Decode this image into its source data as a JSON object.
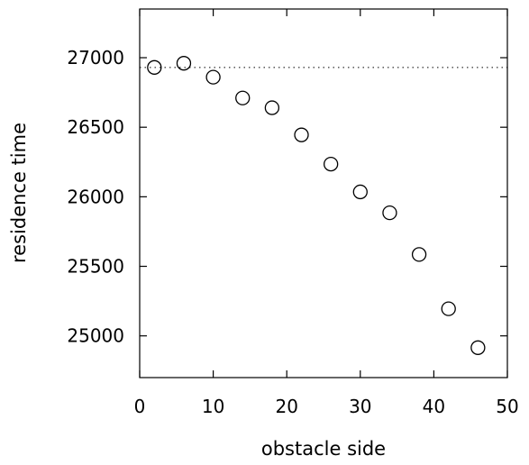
{
  "chart_data": {
    "type": "scatter",
    "title": "",
    "xlabel": "obstacle side",
    "ylabel": "residence time",
    "xlim": [
      0,
      50
    ],
    "ylim": [
      24700,
      27350
    ],
    "x_ticks": [
      0,
      10,
      20,
      30,
      40,
      50
    ],
    "y_ticks": [
      25000,
      25500,
      26000,
      26500,
      27000
    ],
    "x_tick_labels": [
      "0",
      "10",
      "20",
      "30",
      "40",
      "50"
    ],
    "y_tick_labels": [
      "25000",
      "25500",
      "26000",
      "26500",
      "27000"
    ],
    "grid": false,
    "legend": "none",
    "marker": "open-circle",
    "reference_line": {
      "y": 26930,
      "style": "dotted"
    },
    "series": [
      {
        "x": [
          2,
          6,
          10,
          14,
          18,
          22,
          26,
          30,
          34,
          38,
          42,
          46
        ],
        "y": [
          26930,
          26960,
          26860,
          26710,
          26640,
          26445,
          26235,
          26035,
          25885,
          25585,
          25195,
          24915
        ]
      }
    ]
  }
}
